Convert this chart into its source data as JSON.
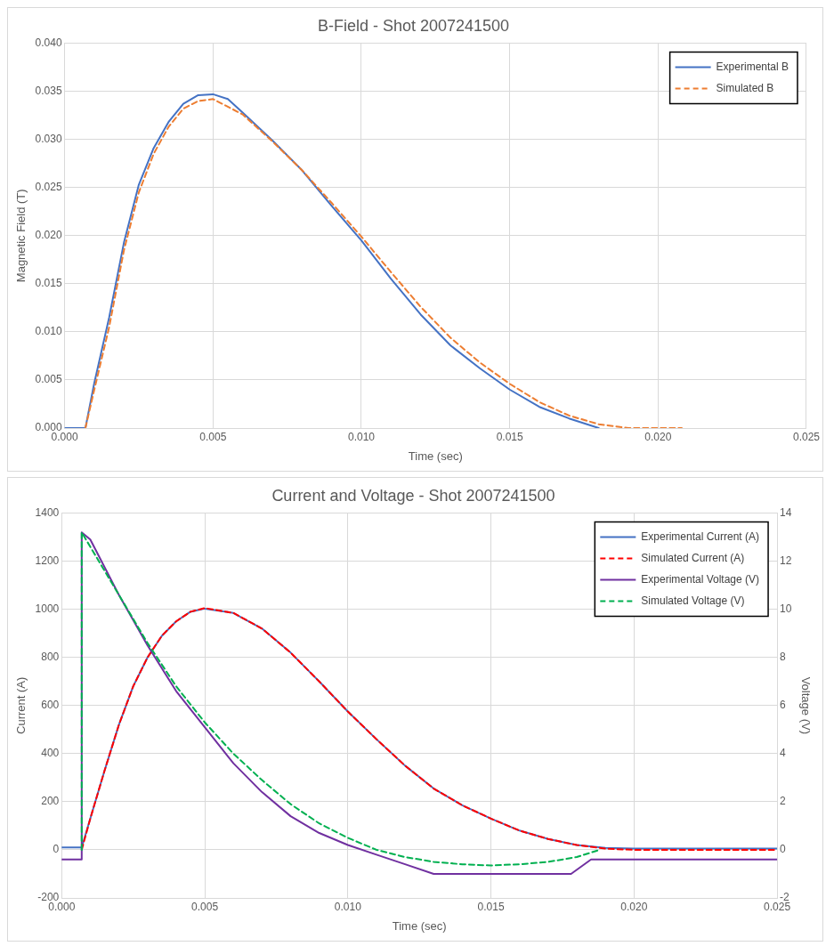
{
  "chart_data": [
    {
      "type": "line",
      "title": "B-Field - Shot 2007241500",
      "xlabel": "Time (sec)",
      "ylabel": "Magnetic Field (T)",
      "xlim": [
        0,
        0.025
      ],
      "xticks": [
        {
          "value": 0,
          "label": "0.000"
        },
        {
          "value": 0.005,
          "label": "0.005"
        },
        {
          "value": 0.01,
          "label": "0.010"
        },
        {
          "value": 0.015,
          "label": "0.015"
        },
        {
          "value": 0.02,
          "label": "0.020"
        },
        {
          "value": 0.025,
          "label": "0.025"
        }
      ],
      "ylim": [
        0,
        0.04
      ],
      "yticks": [
        {
          "value": 0,
          "label": "0.000"
        },
        {
          "value": 0.005,
          "label": "0.005"
        },
        {
          "value": 0.01,
          "label": "0.010"
        },
        {
          "value": 0.015,
          "label": "0.015"
        },
        {
          "value": 0.02,
          "label": "0.020"
        },
        {
          "value": 0.025,
          "label": "0.025"
        },
        {
          "value": 0.03,
          "label": "0.030"
        },
        {
          "value": 0.035,
          "label": "0.035"
        },
        {
          "value": 0.04,
          "label": "0.040"
        }
      ],
      "grid": true,
      "legend": "top right",
      "marker": "none",
      "series": [
        {
          "name": "Experimental B",
          "color": "#4472c4",
          "line_style": "solid",
          "x": [
            0,
            0.0007,
            0.001,
            0.0015,
            0.002,
            0.0025,
            0.003,
            0.0035,
            0.004,
            0.0045,
            0.005,
            0.0055,
            0.006,
            0.007,
            0.008,
            0.009,
            0.01,
            0.011,
            0.012,
            0.013,
            0.014,
            0.015,
            0.016,
            0.017,
            0.018
          ],
          "values": [
            0,
            0,
            0.0047,
            0.0115,
            0.0193,
            0.0253,
            0.0291,
            0.0318,
            0.0337,
            0.0346,
            0.0347,
            0.0342,
            0.0328,
            0.0299,
            0.0268,
            0.0231,
            0.0195,
            0.0155,
            0.0118,
            0.0086,
            0.0062,
            0.004,
            0.0022,
            0.001,
            0
          ]
        },
        {
          "name": "Simulated B",
          "color": "#ed7d31",
          "line_style": "dashed",
          "x": [
            0.0007,
            0.001,
            0.0015,
            0.002,
            0.0025,
            0.003,
            0.0035,
            0.004,
            0.0045,
            0.005,
            0.006,
            0.007,
            0.008,
            0.009,
            0.01,
            0.011,
            0.012,
            0.013,
            0.014,
            0.015,
            0.016,
            0.017,
            0.018,
            0.019,
            0.0208
          ],
          "values": [
            0,
            0.004,
            0.0105,
            0.0185,
            0.0245,
            0.0285,
            0.0313,
            0.0332,
            0.034,
            0.0342,
            0.0326,
            0.0298,
            0.0268,
            0.0234,
            0.0199,
            0.0162,
            0.0126,
            0.0094,
            0.0068,
            0.0046,
            0.0027,
            0.0013,
            0.0004,
            0,
            0
          ]
        }
      ]
    },
    {
      "type": "line",
      "title": "Current and Voltage - Shot 2007241500",
      "xlabel": "Time (sec)",
      "ylabel": "Current (A)",
      "y2label": "Voltage (V)",
      "xlim": [
        0,
        0.025
      ],
      "xticks": [
        {
          "value": 0,
          "label": "0.000"
        },
        {
          "value": 0.005,
          "label": "0.005"
        },
        {
          "value": 0.01,
          "label": "0.010"
        },
        {
          "value": 0.015,
          "label": "0.015"
        },
        {
          "value": 0.02,
          "label": "0.020"
        },
        {
          "value": 0.025,
          "label": "0.025"
        }
      ],
      "ylim": [
        -200,
        1400
      ],
      "yticks": [
        -200,
        0,
        200,
        400,
        600,
        800,
        1000,
        1200,
        1400
      ],
      "y2lim": [
        -2,
        14
      ],
      "y2ticks": [
        -2,
        0,
        2,
        4,
        6,
        8,
        10,
        12,
        14
      ],
      "grid": true,
      "legend": "top right",
      "marker": "none",
      "series": [
        {
          "name": "Experimental Current (A)",
          "color": "#4472c4",
          "line_style": "solid",
          "x": [
            0,
            0.0007,
            0.001,
            0.0015,
            0.002,
            0.0025,
            0.003,
            0.0035,
            0.004,
            0.0045,
            0.005,
            0.006,
            0.007,
            0.008,
            0.009,
            0.01,
            0.011,
            0.012,
            0.013,
            0.014,
            0.015,
            0.016,
            0.017,
            0.018,
            0.019,
            0.02,
            0.025
          ],
          "values": [
            10,
            10,
            130,
            330,
            520,
            680,
            800,
            890,
            950,
            990,
            1003,
            985,
            920,
            820,
            700,
            575,
            460,
            350,
            255,
            185,
            130,
            80,
            45,
            20,
            8,
            5,
            5
          ]
        },
        {
          "name": "Simulated Current (A)",
          "color": "#ff0000",
          "line_style": "dashed",
          "x": [
            0.0007,
            0.001,
            0.0015,
            0.002,
            0.0025,
            0.003,
            0.0035,
            0.004,
            0.0045,
            0.005,
            0.006,
            0.007,
            0.008,
            0.009,
            0.01,
            0.011,
            0.012,
            0.013,
            0.014,
            0.015,
            0.016,
            0.017,
            0.018,
            0.019,
            0.02,
            0.025
          ],
          "values": [
            0,
            130,
            330,
            520,
            680,
            800,
            890,
            950,
            990,
            1005,
            985,
            920,
            820,
            700,
            575,
            460,
            350,
            255,
            185,
            130,
            80,
            45,
            20,
            5,
            0,
            0
          ]
        },
        {
          "name": "Experimental Voltage (V)",
          "color": "#7030a0",
          "line_style": "solid",
          "axis": "y2",
          "x": [
            0,
            0.0007,
            0.0007,
            0.001,
            0.002,
            0.003,
            0.004,
            0.005,
            0.006,
            0.007,
            0.008,
            0.009,
            0.01,
            0.011,
            0.012,
            0.013,
            0.015,
            0.0178,
            0.0185,
            0.025
          ],
          "values": [
            -0.4,
            -0.4,
            13.2,
            12.9,
            10.6,
            8.5,
            6.6,
            5.1,
            3.6,
            2.4,
            1.4,
            0.7,
            0.2,
            -0.2,
            -0.6,
            -1,
            -1,
            -1,
            -0.4,
            -0.4
          ]
        },
        {
          "name": "Simulated Voltage (V)",
          "color": "#00b050",
          "line_style": "dashed",
          "axis": "y2",
          "x": [
            0.0007,
            0.0007,
            0.002,
            0.003,
            0.004,
            0.005,
            0.006,
            0.007,
            0.008,
            0.009,
            0.01,
            0.011,
            0.012,
            0.013,
            0.014,
            0.015,
            0.016,
            0.017,
            0.018,
            0.0188
          ],
          "values": [
            0,
            13.2,
            10.6,
            8.6,
            6.8,
            5.3,
            4,
            2.9,
            1.9,
            1.1,
            0.5,
            0,
            -0.3,
            -0.5,
            -0.6,
            -0.65,
            -0.6,
            -0.5,
            -0.3,
            0
          ]
        }
      ]
    }
  ]
}
